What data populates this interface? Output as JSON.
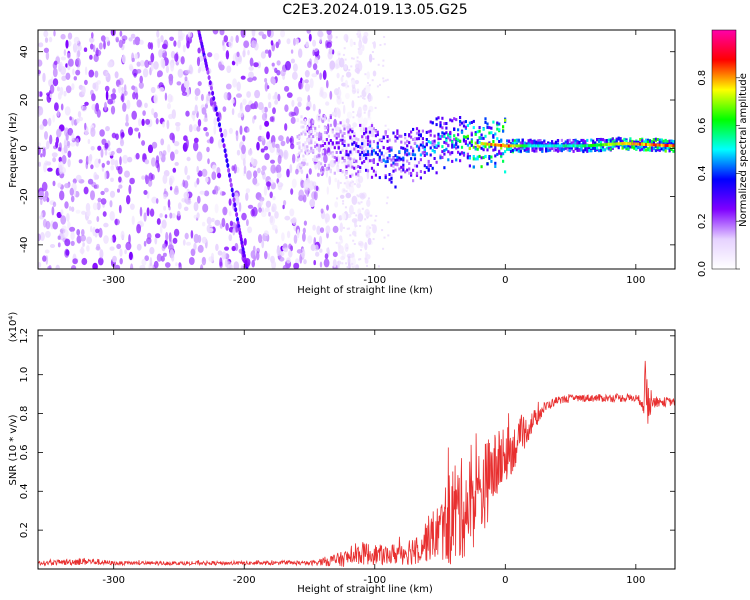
{
  "title": "C2E3.2024.019.13.05.G25",
  "chart_data": [
    {
      "type": "heatmap",
      "name": "spectrogram",
      "xlabel": "Height of straight line (km)",
      "ylabel": "Frequency (Hz)",
      "xlim": [
        -358,
        130
      ],
      "ylim": [
        -50,
        49
      ],
      "xticks": [
        -300,
        -200,
        -100,
        0,
        100
      ],
      "yticks": [
        -40,
        -20,
        0,
        20,
        40
      ],
      "grid": false,
      "colorbar": {
        "label": "Normalized spectral amplitude",
        "range": [
          0,
          1
        ],
        "ticks": [
          "0.0",
          "0.2",
          "0.4",
          "0.6",
          "0.8"
        ],
        "colors": [
          "#ffffff",
          "#e6d2ff",
          "#7f00ff",
          "#0000ff",
          "#00ffff",
          "#00ff00",
          "#ffff00",
          "#ff0000",
          "#ff00aa"
        ]
      },
      "features": {
        "noise_region_x": [
          -358,
          -130
        ],
        "signal_track": [
          {
            "x": -155,
            "f": 3,
            "amp": 0.15
          },
          {
            "x": -140,
            "f": 2,
            "amp": 0.25
          },
          {
            "x": -120,
            "f": 0,
            "amp": 0.35
          },
          {
            "x": -100,
            "f": -2,
            "amp": 0.45
          },
          {
            "x": -80,
            "f": -4,
            "amp": 0.45
          },
          {
            "x": -60,
            "f": 0,
            "amp": 0.5
          },
          {
            "x": -40,
            "f": 4,
            "amp": 0.6
          },
          {
            "x": -20,
            "f": 2,
            "amp": 0.8
          },
          {
            "x": 0,
            "f": 1,
            "amp": 0.9
          },
          {
            "x": 20,
            "f": 1,
            "amp": 0.55
          },
          {
            "x": 60,
            "f": 1,
            "amp": 0.6
          },
          {
            "x": 90,
            "f": 2,
            "amp": 0.85
          },
          {
            "x": 130,
            "f": 1,
            "amp": 0.9
          }
        ],
        "streak_track": [
          {
            "x": -235,
            "f": 49
          },
          {
            "x": -228,
            "f": 32
          },
          {
            "x": -215,
            "f": 0
          },
          {
            "x": -205,
            "f": -30
          },
          {
            "x": -198,
            "f": -50
          }
        ]
      }
    },
    {
      "type": "line",
      "name": "snr",
      "xlabel": "Height of straight line (km)",
      "ylabel": "SNR (10 * v/v)",
      "yscale_label": "(x10⁴)",
      "xlim": [
        -358,
        130
      ],
      "ylim": [
        0,
        1.23
      ],
      "xticks": [
        -300,
        -200,
        -100,
        0,
        100
      ],
      "yticks": [
        0.2,
        0.4,
        0.6,
        0.8,
        1.0,
        1.2
      ],
      "ytick_labels": [
        "0.2",
        "0.4",
        "0.6",
        "0.8",
        "1.0",
        "1.2"
      ],
      "color": "#e83030",
      "grid": false,
      "envelope": {
        "x": [
          -358,
          -320,
          -300,
          -250,
          -200,
          -150,
          -125,
          -110,
          -90,
          -70,
          -50,
          -40,
          -30,
          -20,
          -10,
          0,
          10,
          20,
          30,
          40,
          60,
          80,
          100,
          105,
          108,
          112,
          130
        ],
        "mean": [
          0.03,
          0.04,
          0.03,
          0.03,
          0.03,
          0.03,
          0.05,
          0.08,
          0.07,
          0.1,
          0.2,
          0.28,
          0.32,
          0.38,
          0.5,
          0.58,
          0.65,
          0.75,
          0.83,
          0.87,
          0.88,
          0.88,
          0.88,
          0.86,
          0.9,
          0.86,
          0.86
        ],
        "spread": [
          0.01,
          0.02,
          0.01,
          0.01,
          0.01,
          0.01,
          0.04,
          0.06,
          0.05,
          0.08,
          0.15,
          0.3,
          0.25,
          0.25,
          0.2,
          0.15,
          0.1,
          0.06,
          0.03,
          0.02,
          0.02,
          0.02,
          0.02,
          0.03,
          0.25,
          0.03,
          0.02
        ]
      }
    }
  ]
}
